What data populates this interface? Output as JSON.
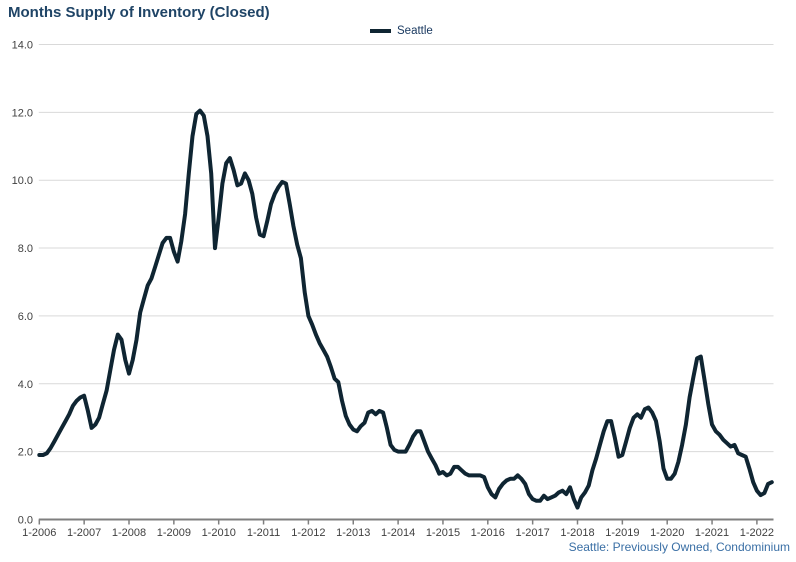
{
  "title": "Months Supply of Inventory (Closed)",
  "legend": {
    "label": "Seattle"
  },
  "footer": "Seattle: Previously Owned, Condominium",
  "colors": {
    "title_text": "#1F4466",
    "legend_text": "#17375E",
    "footer_text": "#3A6FA5",
    "series_line": "#0F2532",
    "gridline": "#D9D9D9",
    "axis_line": "#7F7F7F",
    "tick_label": "#404040"
  },
  "chart_data": {
    "type": "line",
    "title": "Months Supply of Inventory (Closed)",
    "series_name": "Seattle",
    "x_start": "2006-01",
    "x_interval": "monthly",
    "x_tick_labels": [
      "1-2006",
      "1-2007",
      "1-2008",
      "1-2009",
      "1-2010",
      "1-2011",
      "1-2012",
      "1-2013",
      "1-2014",
      "1-2015",
      "1-2016",
      "1-2017",
      "1-2018",
      "1-2019",
      "1-2020",
      "1-2021",
      "1-2022"
    ],
    "y_tick_labels": [
      "0.0",
      "2.0",
      "4.0",
      "6.0",
      "8.0",
      "10.0",
      "12.0",
      "14.0"
    ],
    "ylim": [
      0,
      14
    ],
    "y_step": 2,
    "grid": "horizontal",
    "legend_position": "top-center",
    "annotation": "Seattle: Previously Owned, Condominium",
    "values": [
      1.9,
      1.9,
      1.95,
      2.1,
      2.3,
      2.5,
      2.7,
      2.9,
      3.1,
      3.35,
      3.5,
      3.6,
      3.65,
      3.2,
      2.7,
      2.8,
      3.0,
      3.4,
      3.8,
      4.4,
      5.0,
      5.45,
      5.3,
      4.7,
      4.3,
      4.7,
      5.3,
      6.1,
      6.5,
      6.9,
      7.1,
      7.45,
      7.8,
      8.15,
      8.3,
      8.3,
      7.9,
      7.6,
      8.2,
      9.0,
      10.2,
      11.3,
      11.95,
      12.05,
      11.9,
      11.3,
      10.2,
      8.0,
      8.9,
      9.9,
      10.5,
      10.65,
      10.3,
      9.85,
      9.9,
      10.2,
      10.0,
      9.6,
      8.9,
      8.4,
      8.35,
      8.8,
      9.3,
      9.6,
      9.8,
      9.95,
      9.9,
      9.3,
      8.65,
      8.1,
      7.7,
      6.7,
      6.0,
      5.75,
      5.45,
      5.2,
      5.0,
      4.8,
      4.5,
      4.15,
      4.05,
      3.5,
      3.05,
      2.8,
      2.65,
      2.6,
      2.75,
      2.85,
      3.15,
      3.2,
      3.1,
      3.2,
      3.15,
      2.7,
      2.2,
      2.05,
      2.0,
      2.0,
      2.0,
      2.2,
      2.45,
      2.6,
      2.6,
      2.3,
      2.0,
      1.8,
      1.6,
      1.35,
      1.4,
      1.3,
      1.35,
      1.55,
      1.55,
      1.45,
      1.35,
      1.3,
      1.3,
      1.3,
      1.3,
      1.25,
      0.95,
      0.75,
      0.65,
      0.9,
      1.05,
      1.15,
      1.2,
      1.2,
      1.3,
      1.2,
      1.05,
      0.75,
      0.6,
      0.55,
      0.55,
      0.7,
      0.6,
      0.65,
      0.7,
      0.8,
      0.85,
      0.75,
      0.95,
      0.6,
      0.35,
      0.65,
      0.8,
      1.0,
      1.45,
      1.8,
      2.2,
      2.6,
      2.9,
      2.9,
      2.4,
      1.85,
      1.9,
      2.3,
      2.7,
      3.0,
      3.1,
      3.0,
      3.25,
      3.3,
      3.15,
      2.9,
      2.3,
      1.5,
      1.2,
      1.2,
      1.35,
      1.7,
      2.2,
      2.8,
      3.6,
      4.2,
      4.75,
      4.8,
      4.1,
      3.4,
      2.8,
      2.6,
      2.5,
      2.35,
      2.25,
      2.15,
      2.2,
      1.95,
      1.9,
      1.85,
      1.5,
      1.1,
      0.85,
      0.72,
      0.78,
      1.05,
      1.1
    ]
  }
}
